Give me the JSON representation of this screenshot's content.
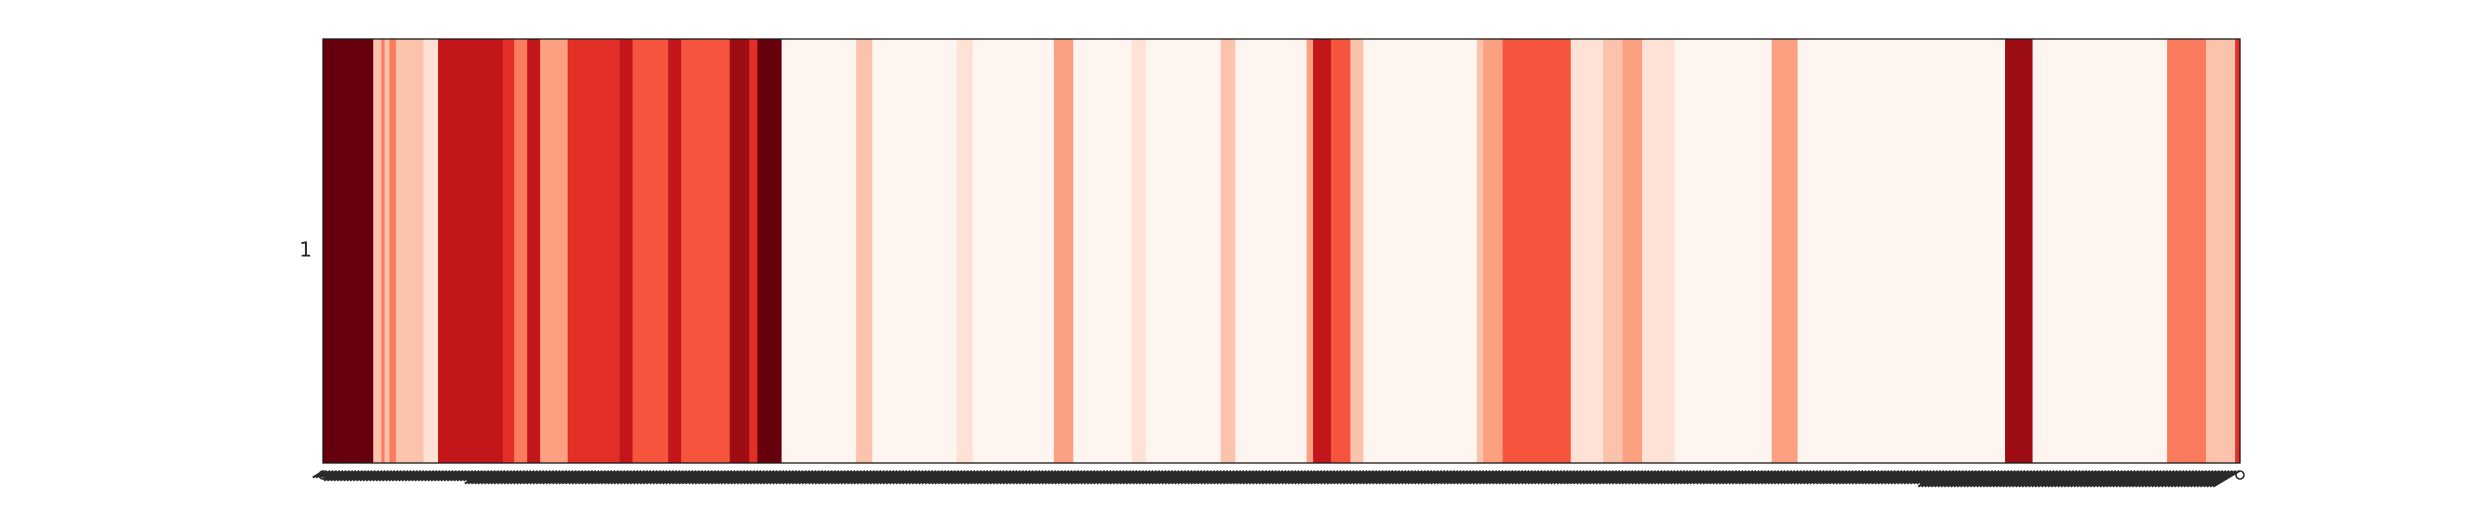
{
  "chart_data": {
    "type": "heatmap",
    "title": "",
    "xlabel": "",
    "ylabel": "",
    "y_categories": [
      "1"
    ],
    "x_tick_labels_legible": false,
    "colormap": "Reds",
    "colorbar": false,
    "grid": false,
    "legend": "none",
    "value_range": [
      0,
      9
    ],
    "values": [
      9,
      9,
      9,
      9,
      9,
      9,
      9,
      9,
      9,
      9,
      9,
      9,
      9,
      9,
      9,
      9,
      9,
      9,
      9,
      9,
      9,
      9,
      9,
      9,
      9,
      9,
      9,
      9,
      9,
      9,
      9,
      2,
      2,
      2,
      2,
      2,
      4,
      4,
      2,
      2,
      2,
      4,
      4,
      4,
      4,
      2,
      2,
      2,
      2,
      2,
      2,
      2,
      2,
      2,
      2,
      2,
      2,
      2,
      2,
      2,
      2,
      2,
      1,
      1,
      1,
      1,
      1,
      1,
      1,
      1,
      1,
      7,
      7,
      7,
      7,
      7,
      7,
      7,
      7,
      7,
      7,
      7,
      7,
      7,
      7,
      7,
      7,
      7,
      7,
      7,
      7,
      7,
      7,
      7,
      7,
      7,
      7,
      7,
      7,
      7,
      7,
      7,
      7,
      7,
      7,
      7,
      7,
      7,
      7,
      7,
      7,
      6,
      6,
      6,
      6,
      6,
      6,
      6,
      4,
      4,
      4,
      4,
      4,
      4,
      4,
      4,
      7,
      7,
      7,
      7,
      7,
      7,
      7,
      7,
      3,
      3,
      3,
      3,
      3,
      3,
      3,
      3,
      3,
      3,
      3,
      3,
      3,
      3,
      3,
      3,
      3,
      6,
      6,
      6,
      6,
      6,
      6,
      6,
      6,
      6,
      6,
      6,
      6,
      6,
      6,
      6,
      6,
      6,
      6,
      6,
      6,
      6,
      6,
      6,
      6,
      6,
      6,
      6,
      6,
      6,
      6,
      6,
      6,
      7,
      7,
      7,
      7,
      7,
      7,
      7,
      7,
      5,
      5,
      5,
      5,
      5,
      5,
      5,
      5,
      5,
      5,
      5,
      5,
      5,
      5,
      5,
      5,
      5,
      5,
      5,
      5,
      5,
      5,
      7,
      7,
      7,
      7,
      7,
      7,
      7,
      7,
      5,
      5,
      5,
      5,
      5,
      5,
      5,
      5,
      5,
      5,
      5,
      5,
      5,
      5,
      5,
      5,
      5,
      5,
      5,
      5,
      5,
      5,
      5,
      5,
      5,
      5,
      5,
      5,
      5,
      5,
      8,
      8,
      8,
      8,
      8,
      8,
      8,
      8,
      8,
      8,
      8,
      8,
      6,
      6,
      6,
      6,
      6,
      9,
      9,
      9,
      9,
      9,
      9,
      9,
      9,
      9,
      9,
      9,
      9,
      9,
      9,
      9,
      0,
      0,
      0,
      0,
      0,
      0,
      0,
      0,
      0,
      0,
      0,
      0,
      0,
      0,
      0,
      0,
      0,
      0,
      0,
      0,
      0,
      0,
      0,
      0,
      0,
      0,
      0,
      0,
      0,
      0,
      0,
      0,
      0,
      0,
      0,
      0,
      0,
      0,
      0,
      0,
      0,
      0,
      0,
      0,
      0,
      0,
      2,
      2,
      2,
      2,
      2,
      2,
      2,
      2,
      2,
      2,
      0,
      0,
      0,
      0,
      0,
      0,
      0,
      0,
      0,
      0,
      0,
      0,
      0,
      0,
      0,
      0,
      0,
      0,
      0,
      0,
      0,
      0,
      0,
      0,
      0,
      0,
      0,
      0,
      0,
      0,
      0,
      0,
      0,
      0,
      0,
      0,
      0,
      0,
      0,
      0,
      0,
      0,
      0,
      0,
      0,
      0,
      0,
      0,
      0,
      0,
      0,
      0,
      1,
      1,
      1,
      1,
      1,
      1,
      1,
      1,
      1,
      1,
      0,
      0,
      0,
      0,
      0,
      0,
      0,
      0,
      0,
      0,
      0,
      0,
      0,
      0,
      0,
      0,
      0,
      0,
      0,
      0,
      0,
      0,
      0,
      0,
      0,
      0,
      0,
      0,
      0,
      0,
      0,
      0,
      0,
      0,
      0,
      0,
      0,
      0,
      0,
      0,
      0,
      0,
      0,
      0,
      0,
      0,
      0,
      0,
      0,
      0,
      3,
      3,
      3,
      3,
      3,
      3,
      3,
      3,
      3,
      3,
      3,
      3,
      0,
      0,
      0,
      0,
      0,
      0,
      0,
      0,
      0,
      0,
      0,
      0,
      0,
      0,
      0,
      0,
      0,
      0,
      0,
      0,
      0,
      0,
      0,
      0,
      0,
      0,
      0,
      0,
      0,
      0,
      0,
      0,
      0,
      0,
      0,
      0,
      1,
      1,
      1,
      1,
      1,
      1,
      1,
      1,
      1,
      0,
      0,
      0,
      0,
      0,
      0,
      0,
      0,
      0,
      0,
      0,
      0,
      0,
      0,
      0,
      0,
      0,
      0,
      0,
      0,
      0,
      0,
      0,
      0,
      0,
      0,
      0,
      0,
      0,
      0,
      0,
      0,
      0,
      0,
      0,
      0,
      0,
      0,
      0,
      0,
      0,
      0,
      0,
      0,
      0,
      0,
      2,
      2,
      2,
      2,
      2,
      2,
      2,
      2,
      2,
      0,
      0,
      0,
      0,
      0,
      0,
      0,
      0,
      0,
      0,
      0,
      0,
      0,
      0,
      0,
      0,
      0,
      0,
      0,
      0,
      0,
      0,
      0,
      0,
      0,
      0,
      0,
      0,
      0,
      0,
      0,
      0,
      0,
      0,
      0,
      0,
      0,
      0,
      0,
      0,
      0,
      0,
      0,
      0,
      3,
      3,
      3,
      3,
      7,
      7,
      7,
      7,
      7,
      7,
      7,
      7,
      7,
      7,
      7,
      5,
      5,
      5,
      5,
      5,
      5,
      5,
      5,
      5,
      5,
      5,
      5,
      2,
      2,
      2,
      2,
      2,
      2,
      2,
      2,
      0,
      0,
      0,
      0,
      0,
      0,
      0,
      0,
      0,
      0,
      0,
      0,
      0,
      0,
      0,
      0,
      0,
      0,
      0,
      0,
      0,
      0,
      0,
      0,
      0,
      0,
      0,
      0,
      0,
      0,
      0,
      0,
      0,
      0,
      0,
      0,
      0,
      0,
      0,
      0,
      0,
      0,
      0,
      0,
      0,
      0,
      0,
      0,
      0,
      0,
      0,
      0,
      0,
      0,
      0,
      0,
      0,
      0,
      0,
      0,
      0,
      0,
      0,
      0,
      0,
      0,
      0,
      0,
      0,
      0,
      2,
      2,
      2,
      2,
      3,
      3,
      3,
      3,
      3,
      3,
      3,
      3,
      3,
      3,
      3,
      3,
      5,
      5,
      5,
      5,
      5,
      5,
      5,
      5,
      5,
      5,
      5,
      5,
      5,
      5,
      5,
      5,
      5,
      5,
      5,
      5,
      5,
      5,
      5,
      5,
      5,
      5,
      5,
      5,
      5,
      5,
      5,
      5,
      5,
      5,
      5,
      5,
      5,
      5,
      5,
      5,
      5,
      5,
      1,
      1,
      1,
      1,
      1,
      1,
      1,
      1,
      1,
      1,
      1,
      1,
      1,
      1,
      1,
      1,
      1,
      1,
      1,
      1,
      2,
      2,
      2,
      2,
      2,
      2,
      2,
      2,
      2,
      2,
      2,
      2,
      3,
      3,
      3,
      3,
      3,
      3,
      3,
      3,
      3,
      3,
      3,
      3,
      1,
      1,
      1,
      1,
      1,
      1,
      1,
      1,
      1,
      1,
      1,
      1,
      1,
      1,
      1,
      1,
      1,
      1,
      1,
      1,
      0,
      0,
      0,
      0,
      0,
      0,
      0,
      0,
      0,
      0,
      0,
      0,
      0,
      0,
      0,
      0,
      0,
      0,
      0,
      0,
      0,
      0,
      0,
      0,
      0,
      0,
      0,
      0,
      0,
      0,
      0,
      0,
      0,
      0,
      0,
      0,
      0,
      0,
      0,
      0,
      0,
      0,
      0,
      0,
      0,
      0,
      0,
      0,
      0,
      0,
      0,
      0,
      0,
      0,
      0,
      0,
      0,
      0,
      0,
      0,
      3,
      3,
      3,
      3,
      3,
      3,
      3,
      3,
      3,
      3,
      3,
      3,
      3,
      3,
      3,
      3,
      0,
      0,
      0,
      0,
      0,
      0,
      0,
      0,
      0,
      0,
      0,
      0,
      0,
      0,
      0,
      0,
      0,
      0,
      0,
      0,
      0,
      0,
      0,
      0,
      0,
      0,
      0,
      0,
      0,
      0,
      0,
      0,
      0,
      0,
      0,
      0,
      0,
      0,
      0,
      0,
      0,
      0,
      0,
      0,
      0,
      0,
      0,
      0,
      0,
      0,
      0,
      0,
      0,
      0,
      0,
      0,
      0,
      0,
      0,
      0,
      0,
      0,
      0,
      0,
      0,
      0,
      0,
      0,
      0,
      0,
      0,
      0,
      0,
      0,
      0,
      0,
      0,
      0,
      0,
      0,
      0,
      0,
      0,
      0,
      0,
      0,
      0,
      0,
      0,
      0,
      0,
      0,
      0,
      0,
      0,
      0,
      0,
      0,
      0,
      0,
      0,
      0,
      0,
      0,
      0,
      0,
      0,
      0,
      0,
      0,
      0,
      0,
      0,
      0,
      0,
      0,
      0,
      0,
      0,
      0,
      0,
      0,
      0,
      0,
      0,
      0,
      0,
      0,
      8,
      8,
      8,
      8,
      8,
      8,
      8,
      8,
      8,
      8,
      8,
      8,
      8,
      8,
      8,
      8,
      8,
      0,
      0,
      0,
      0,
      0,
      0,
      0,
      0,
      0,
      0,
      0,
      0,
      0,
      0,
      0,
      0,
      0,
      0,
      0,
      0,
      0,
      0,
      0,
      0,
      0,
      0,
      0,
      0,
      0,
      0,
      0,
      0,
      0,
      0,
      0,
      0,
      0,
      0,
      0,
      0,
      0,
      0,
      0,
      0,
      0,
      0,
      0,
      0,
      0,
      0,
      0,
      0,
      0,
      0,
      0,
      0,
      0,
      0,
      0,
      0,
      0,
      0,
      0,
      0,
      0,
      0,
      0,
      0,
      0,
      0,
      0,
      0,
      0,
      0,
      0,
      0,
      0,
      0,
      0,
      0,
      0,
      0,
      0,
      4,
      4,
      4,
      4,
      4,
      4,
      4,
      4,
      4,
      4,
      4,
      4,
      4,
      4,
      4,
      4,
      4,
      4,
      4,
      4,
      4,
      4,
      4,
      4,
      2,
      2,
      2,
      2,
      2,
      2,
      2,
      2,
      2,
      2,
      2,
      2,
      2,
      2,
      2,
      2,
      2,
      2,
      6,
      6,
      6
    ]
  }
}
